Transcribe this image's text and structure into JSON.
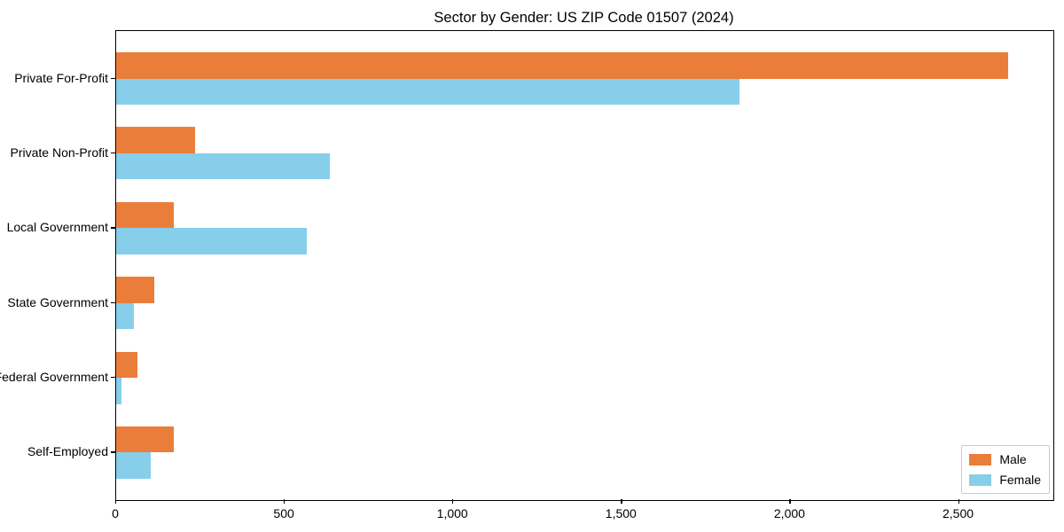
{
  "title": "Sector by Gender: US ZIP Code 01507 (2024)",
  "chart_data": {
    "type": "bar",
    "orientation": "horizontal",
    "title": "Sector by Gender: US ZIP Code 01507 (2024)",
    "xlabel": "",
    "ylabel": "",
    "categories": [
      "Private For-Profit",
      "Private Non-Profit",
      "Local Government",
      "State Government",
      "Federal Government",
      "Self-Employed"
    ],
    "series": [
      {
        "name": "Male",
        "color": "#EB7D3B",
        "values": [
          2645,
          235,
          170,
          112,
          64,
          170
        ]
      },
      {
        "name": "Female",
        "color": "#87CEEB",
        "values": [
          1850,
          635,
          565,
          52,
          16,
          103
        ]
      }
    ],
    "xlim": [
      0,
      2780
    ],
    "xticks": [
      0,
      500,
      1000,
      1500,
      2000,
      2500
    ],
    "xtick_labels": [
      "0",
      "500",
      "1,000",
      "1,500",
      "2,000",
      "2,500"
    ],
    "grid": false,
    "legend_position": "lower right",
    "background_color": "#ffffff",
    "text_color": "#000000"
  }
}
